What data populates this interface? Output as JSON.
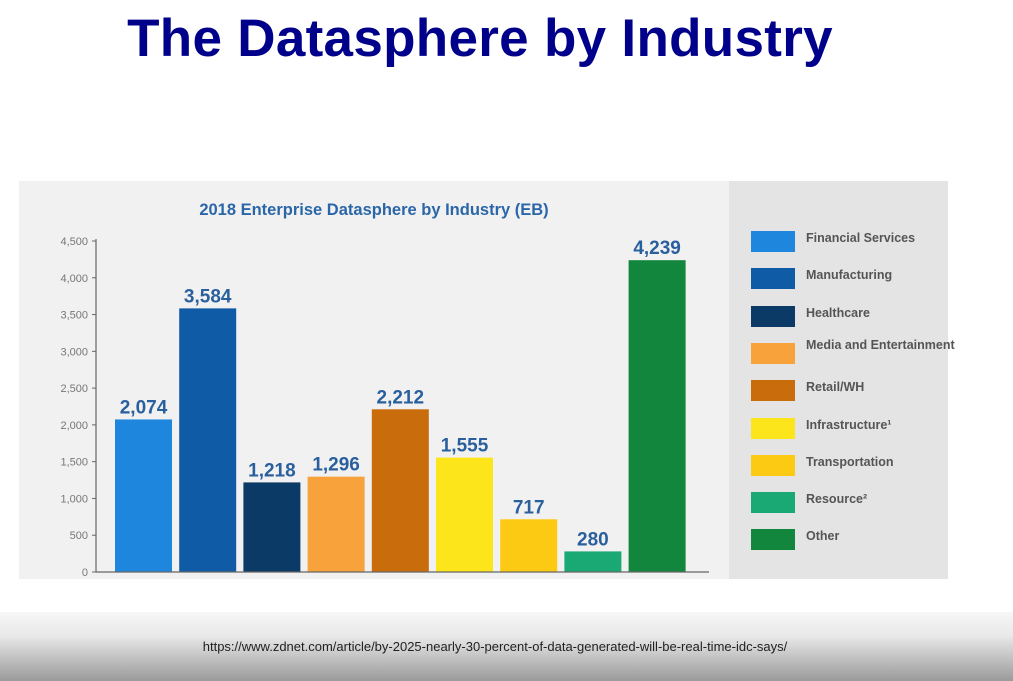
{
  "slide": {
    "title": "The Datasphere by Industry",
    "source_url": "https://www.zdnet.com/article/by-2025-nearly-30-percent-of-data-generated-will-be-real-time-idc-says/"
  },
  "colors": {
    "title": "#00008b",
    "chart_title": "#2a66a8",
    "data_label": "#2a5f9e"
  },
  "chart_data": {
    "type": "bar",
    "title": "2018 Enterprise Datasphere by Industry (EB)",
    "xlabel": "",
    "ylabel": "",
    "ylim": [
      0,
      4500
    ],
    "yticks": [
      0,
      500,
      1000,
      1500,
      2000,
      2500,
      3000,
      3500,
      4000,
      4500
    ],
    "ytick_labels": [
      "0",
      "500",
      "1,000",
      "1,500",
      "2,000",
      "2,500",
      "3,000",
      "3,500",
      "4,000",
      "4,500"
    ],
    "categories": [
      "Financial Services",
      "Manufacturing",
      "Healthcare",
      "Media and Entertainment",
      "Retail/WH",
      "Infrastructure¹",
      "Transportation",
      "Resource²",
      "Other"
    ],
    "values": [
      2074,
      3584,
      1218,
      1296,
      2212,
      1555,
      717,
      280,
      4239
    ],
    "value_labels": [
      "2,074",
      "3,584",
      "1,218",
      "1,296",
      "2,212",
      "1,555",
      "717",
      "280",
      "4,239"
    ],
    "colors": [
      "#1f86de",
      "#0f5ba6",
      "#0b3a66",
      "#f7a23b",
      "#c86c0c",
      "#fde51c",
      "#fcca12",
      "#1aa874",
      "#12863d"
    ],
    "grid": false,
    "legend_position": "right"
  }
}
